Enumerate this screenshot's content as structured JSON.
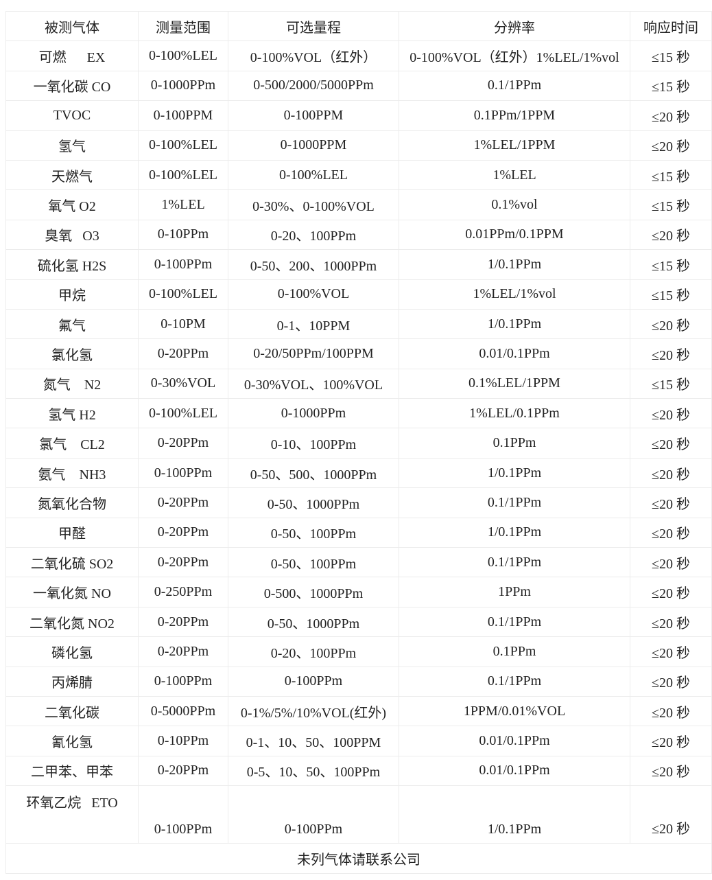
{
  "headers": [
    "被测气体",
    "测量范围",
    "可选量程",
    "分辨率",
    "响应时间"
  ],
  "rows": [
    [
      "可燃      EX",
      "0-100%LEL",
      "0-100%VOL（红外）",
      "0-100%VOL（红外）1%LEL/1%vol",
      "≤15 秒"
    ],
    [
      "一氧化碳 CO",
      "0-1000PPm",
      "0-500/2000/5000PPm",
      "0.1/1PPm",
      "≤15 秒"
    ],
    [
      "TVOC",
      "0-100PPM",
      "0-100PPM",
      "0.1PPm/1PPM",
      "≤20 秒"
    ],
    [
      "氢气",
      "0-100%LEL",
      "0-1000PPM",
      "1%LEL/1PPM",
      "≤20 秒"
    ],
    [
      "天燃气",
      "0-100%LEL",
      "0-100%LEL",
      "1%LEL",
      "≤15 秒"
    ],
    [
      "氧气 O2",
      "1%LEL",
      "0-30%、0-100%VOL",
      "0.1%vol",
      "≤15 秒"
    ],
    [
      "臭氧   O3",
      "0-10PPm",
      "0-20、100PPm",
      "0.01PPm/0.1PPM",
      "≤20 秒"
    ],
    [
      "硫化氢 H2S",
      "0-100PPm",
      "0-50、200、1000PPm",
      "1/0.1PPm",
      "≤15 秒"
    ],
    [
      "甲烷",
      "0-100%LEL",
      "0-100%VOL",
      "1%LEL/1%vol",
      "≤15 秒"
    ],
    [
      "氟气",
      "0-10PM",
      "0-1、10PPM",
      "1/0.1PPm",
      "≤20 秒"
    ],
    [
      "氯化氢",
      "0-20PPm",
      "0-20/50PPm/100PPM",
      "0.01/0.1PPm",
      "≤20 秒"
    ],
    [
      "氮气    N2",
      "0-30%VOL",
      "0-30%VOL、100%VOL",
      "0.1%LEL/1PPM",
      "≤15 秒"
    ],
    [
      "氢气 H2",
      "0-100%LEL",
      "0-1000PPm",
      "1%LEL/0.1PPm",
      "≤20 秒"
    ],
    [
      "氯气    CL2",
      "0-20PPm",
      "0-10、100PPm",
      "0.1PPm",
      "≤20 秒"
    ],
    [
      "氨气    NH3",
      "0-100PPm",
      "0-50、500、1000PPm",
      "1/0.1PPm",
      "≤20 秒"
    ],
    [
      "氮氧化合物",
      "0-20PPm",
      "0-50、1000PPm",
      "0.1/1PPm",
      "≤20 秒"
    ],
    [
      "甲醛",
      "0-20PPm",
      "0-50、100PPm",
      "1/0.1PPm",
      "≤20 秒"
    ],
    [
      "二氧化硫 SO2",
      "0-20PPm",
      "0-50、100PPm",
      "0.1/1PPm",
      "≤20 秒"
    ],
    [
      "一氧化氮 NO",
      "0-250PPm",
      "0-500、1000PPm",
      "1PPm",
      "≤20 秒"
    ],
    [
      "二氧化氮 NO2",
      "0-20PPm",
      "0-50、1000PPm",
      "0.1/1PPm",
      "≤20 秒"
    ],
    [
      "磷化氢",
      "0-20PPm",
      "0-20、100PPm",
      "0.1PPm",
      "≤20 秒"
    ],
    [
      "丙烯腈",
      "0-100PPm",
      "0-100PPm",
      "0.1/1PPm",
      "≤20 秒"
    ],
    [
      "二氧化碳",
      "0-5000PPm",
      "0-1%/5%/10%VOL(红外)",
      "1PPM/0.01%VOL",
      "≤20 秒"
    ],
    [
      "氰化氢",
      "0-10PPm",
      "0-1、10、50、100PPM",
      "0.01/0.1PPm",
      "≤20 秒"
    ],
    [
      "二甲苯、甲苯",
      "0-20PPm",
      "0-5、10、50、100PPm",
      "0.01/0.1PPm",
      "≤20 秒"
    ]
  ],
  "last_row": [
    "环氧乙烷   ETO",
    "0-100PPm",
    "0-100PPm",
    "1/0.1PPm",
    "≤20 秒"
  ],
  "footer": "未列气体请联系公司"
}
